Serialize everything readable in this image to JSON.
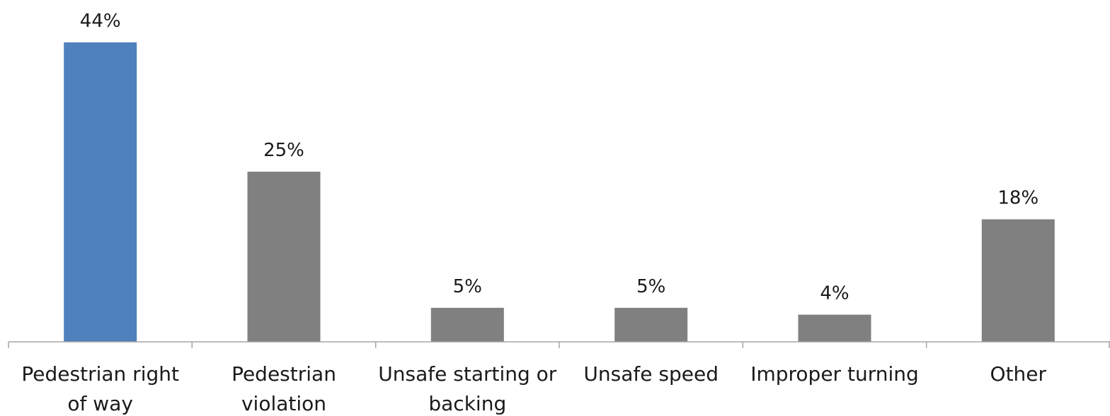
{
  "chart_data": {
    "type": "bar",
    "title": "",
    "xlabel": "",
    "ylabel": "",
    "categories": [
      [
        "Pedestrian right",
        "of way"
      ],
      [
        "Pedestrian",
        "violation"
      ],
      [
        "Unsafe starting or",
        "backing"
      ],
      [
        "Unsafe speed"
      ],
      [
        "Improper turning"
      ],
      [
        "Other"
      ]
    ],
    "values": [
      44,
      25,
      5,
      5,
      4,
      18
    ],
    "value_labels": [
      "44%",
      "25%",
      "5%",
      "5%",
      "4%",
      "18%"
    ],
    "ylim": [
      0,
      45
    ],
    "grid": false,
    "legend": "none",
    "colors": {
      "highlight": "#4f81bd",
      "default": "#808080",
      "axis": "#a6a6a6"
    },
    "highlight_index": 0
  }
}
